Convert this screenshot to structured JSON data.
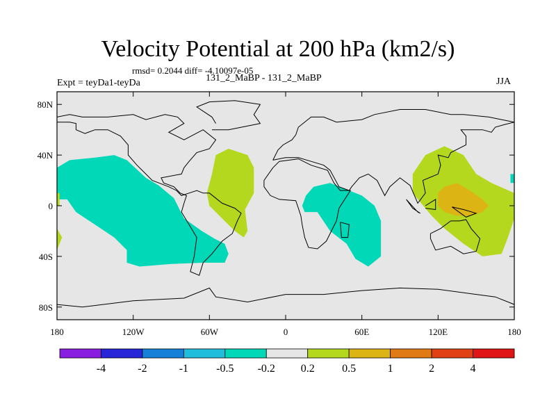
{
  "title": "Velocity Potential at 200 hPa (km2/s)",
  "stats_text": "rmsd= 0.2044 diff= -4.10097e-05",
  "expt_label": "Expt = teyDa1-teyDa",
  "center_label": "131_2_MaBP - 131_2_MaBP",
  "season": "JJA",
  "chart_data": {
    "type": "heatmap",
    "projection": "cylindrical-equidistant",
    "title": "Velocity Potential at 200 hPa (km2/s)",
    "units": "km2/s",
    "x_range": [
      -180,
      180
    ],
    "y_range": [
      -90,
      90
    ],
    "x_ticks": [
      {
        "value": -180,
        "label": "180"
      },
      {
        "value": -120,
        "label": "120W"
      },
      {
        "value": -60,
        "label": "60W"
      },
      {
        "value": 0,
        "label": "0"
      },
      {
        "value": 60,
        "label": "60E"
      },
      {
        "value": 120,
        "label": "120E"
      },
      {
        "value": 180,
        "label": "180"
      }
    ],
    "y_ticks": [
      {
        "value": 80,
        "label": "80N"
      },
      {
        "value": 40,
        "label": "40N"
      },
      {
        "value": 0,
        "label": "0"
      },
      {
        "value": -40,
        "label": "40S"
      },
      {
        "value": -80,
        "label": "80S"
      }
    ],
    "levels": [
      "-4",
      "-2",
      "-1",
      "-0.5",
      "-0.2",
      "0.2",
      "0.5",
      "1",
      "2",
      "4"
    ],
    "colors": [
      "#8a1ee0",
      "#2626d8",
      "#1680d8",
      "#20bedc",
      "#00d8b8",
      "#e6e6e6",
      "#b4d81e",
      "#dcb414",
      "#e07a14",
      "#e04014",
      "#e01414"
    ],
    "background_color": "#e6e6e6",
    "regions": [
      {
        "name": "pacific-negative",
        "level": "-0.5 to -0.2",
        "color": "#00d8b8",
        "points": [
          [
            -180,
            30
          ],
          [
            -170,
            36
          ],
          [
            -150,
            38
          ],
          [
            -135,
            40
          ],
          [
            -125,
            36
          ],
          [
            -110,
            22
          ],
          [
            -100,
            16
          ],
          [
            -88,
            6
          ],
          [
            -80,
            -10
          ],
          [
            -66,
            -20
          ],
          [
            -56,
            -26
          ],
          [
            -48,
            -30
          ],
          [
            -45,
            -38
          ],
          [
            -48,
            -45
          ],
          [
            -65,
            -45
          ],
          [
            -90,
            -46
          ],
          [
            -115,
            -48
          ],
          [
            -125,
            -45
          ],
          [
            -125,
            -35
          ],
          [
            -135,
            -25
          ],
          [
            -150,
            -15
          ],
          [
            -165,
            -5
          ],
          [
            -172,
            5
          ],
          [
            -180,
            5
          ]
        ]
      },
      {
        "name": "americas-positive",
        "level": "0.2 to 0.5",
        "color": "#b4d81e",
        "points": [
          [
            -62,
            10
          ],
          [
            -58,
            25
          ],
          [
            -55,
            40
          ],
          [
            -45,
            45
          ],
          [
            -30,
            40
          ],
          [
            -25,
            30
          ],
          [
            -25,
            10
          ],
          [
            -32,
            -3
          ],
          [
            -30,
            -20
          ],
          [
            -33,
            -25
          ],
          [
            -40,
            -20
          ],
          [
            -50,
            -10
          ],
          [
            -60,
            0
          ]
        ]
      },
      {
        "name": "africa-negative",
        "level": "-0.5 to -0.2",
        "color": "#00d8b8",
        "points": [
          [
            13,
            0
          ],
          [
            16,
            8
          ],
          [
            22,
            15
          ],
          [
            35,
            18
          ],
          [
            50,
            12
          ],
          [
            60,
            8
          ],
          [
            70,
            0
          ],
          [
            75,
            -12
          ],
          [
            75,
            -25
          ],
          [
            75,
            -40
          ],
          [
            65,
            -48
          ],
          [
            55,
            -42
          ],
          [
            48,
            -30
          ],
          [
            35,
            -20
          ],
          [
            25,
            -5
          ],
          [
            15,
            -5
          ]
        ]
      },
      {
        "name": "asia-positive",
        "level": "0.2 to 0.5",
        "color": "#b4d81e",
        "points": [
          [
            100,
            25
          ],
          [
            110,
            40
          ],
          [
            125,
            47
          ],
          [
            140,
            40
          ],
          [
            150,
            25
          ],
          [
            162,
            18
          ],
          [
            180,
            10
          ],
          [
            180,
            -10
          ],
          [
            175,
            -25
          ],
          [
            170,
            -38
          ],
          [
            155,
            -40
          ],
          [
            140,
            -30
          ],
          [
            125,
            -18
          ],
          [
            115,
            -8
          ],
          [
            100,
            10
          ]
        ]
      },
      {
        "name": "asia-core",
        "level": "0.5 to 1",
        "color": "#dcb414",
        "points": [
          [
            120,
            10
          ],
          [
            125,
            15
          ],
          [
            135,
            18
          ],
          [
            145,
            12
          ],
          [
            155,
            5
          ],
          [
            160,
            0
          ],
          [
            155,
            -5
          ],
          [
            145,
            -8
          ],
          [
            135,
            -8
          ],
          [
            125,
            -5
          ],
          [
            120,
            0
          ]
        ]
      },
      {
        "name": "west-pacific-edge",
        "level": "-0.5 to -0.2",
        "color": "#00d8b8",
        "points": [
          [
            177,
            25
          ],
          [
            180,
            25
          ],
          [
            180,
            18
          ],
          [
            177,
            18
          ]
        ]
      },
      {
        "name": "west-edge-north",
        "level": "0.2 to 0.5",
        "color": "#b4d81e",
        "points": [
          [
            -180,
            10
          ],
          [
            -178,
            10
          ],
          [
            -178,
            0
          ],
          [
            -180,
            0
          ]
        ]
      },
      {
        "name": "west-edge-south",
        "level": "0.2 to 0.5",
        "color": "#b4d81e",
        "points": [
          [
            -180,
            -18
          ],
          [
            -176,
            -25
          ],
          [
            -180,
            -35
          ]
        ]
      }
    ],
    "coastlines": [
      [
        [
          -180,
          70
        ],
        [
          -170,
          72
        ],
        [
          -160,
          70
        ],
        [
          -140,
          70
        ],
        [
          -120,
          72
        ],
        [
          -110,
          68
        ],
        [
          -95,
          72
        ],
        [
          -85,
          70
        ],
        [
          -80,
          65
        ],
        [
          -92,
          58
        ],
        [
          -80,
          52
        ],
        [
          -65,
          60
        ],
        [
          -55,
          52
        ],
        [
          -60,
          45
        ],
        [
          -70,
          42
        ],
        [
          -76,
          35
        ],
        [
          -80,
          30
        ],
        [
          -82,
          25
        ],
        [
          -98,
          22
        ],
        [
          -96,
          18
        ],
        [
          -88,
          15
        ],
        [
          -83,
          10
        ],
        [
          -78,
          8
        ],
        [
          -80,
          2
        ],
        [
          -82,
          -5
        ],
        [
          -76,
          -15
        ],
        [
          -70,
          -25
        ],
        [
          -72,
          -40
        ],
        [
          -75,
          -52
        ],
        [
          -68,
          -55
        ],
        [
          -65,
          -45
        ],
        [
          -58,
          -38
        ],
        [
          -50,
          -28
        ],
        [
          -42,
          -22
        ],
        [
          -38,
          -12
        ],
        [
          -35,
          -6
        ],
        [
          -40,
          -2
        ],
        [
          -50,
          2
        ],
        [
          -60,
          10
        ],
        [
          -65,
          10
        ],
        [
          -70,
          12
        ],
        [
          -76,
          10
        ],
        [
          -82,
          8
        ],
        [
          -86,
          12
        ],
        [
          -92,
          15
        ],
        [
          -105,
          20
        ],
        [
          -110,
          25
        ],
        [
          -117,
          32
        ],
        [
          -124,
          40
        ],
        [
          -124,
          48
        ],
        [
          -130,
          55
        ],
        [
          -140,
          60
        ],
        [
          -150,
          60
        ],
        [
          -158,
          57
        ],
        [
          -165,
          60
        ],
        [
          -165,
          65
        ],
        [
          -170,
          66
        ],
        [
          -180,
          66
        ]
      ],
      [
        [
          -58,
          60
        ],
        [
          -45,
          60
        ],
        [
          -20,
          65
        ],
        [
          -25,
          72
        ],
        [
          -20,
          80
        ],
        [
          -40,
          83
        ],
        [
          -60,
          82
        ],
        [
          -70,
          78
        ],
        [
          -58,
          70
        ],
        [
          -55,
          65
        ]
      ],
      [
        [
          -10,
          36
        ],
        [
          -6,
          44
        ],
        [
          -2,
          48
        ],
        [
          5,
          52
        ],
        [
          8,
          56
        ],
        [
          10,
          62
        ],
        [
          20,
          70
        ],
        [
          30,
          70
        ],
        [
          40,
          66
        ],
        [
          60,
          68
        ],
        [
          70,
          72
        ],
        [
          90,
          76
        ],
        [
          110,
          76
        ],
        [
          130,
          72
        ],
        [
          140,
          72
        ],
        [
          160,
          70
        ],
        [
          170,
          68
        ],
        [
          180,
          66
        ]
      ],
      [
        [
          -10,
          36
        ],
        [
          0,
          38
        ],
        [
          10,
          38
        ],
        [
          20,
          35
        ],
        [
          30,
          32
        ],
        [
          35,
          28
        ],
        [
          42,
          15
        ],
        [
          50,
          12
        ],
        [
          52,
          15
        ],
        [
          58,
          22
        ],
        [
          65,
          25
        ],
        [
          72,
          20
        ],
        [
          78,
          8
        ],
        [
          82,
          15
        ],
        [
          90,
          22
        ],
        [
          98,
          16
        ],
        [
          104,
          2
        ],
        [
          110,
          10
        ],
        [
          108,
          20
        ],
        [
          120,
          25
        ],
        [
          122,
          32
        ],
        [
          120,
          40
        ],
        [
          128,
          38
        ],
        [
          130,
          42
        ],
        [
          142,
          48
        ],
        [
          142,
          55
        ],
        [
          138,
          60
        ],
        [
          155,
          60
        ],
        [
          162,
          58
        ],
        [
          165,
          62
        ],
        [
          172,
          64
        ],
        [
          180,
          66
        ]
      ],
      [
        [
          -17,
          15
        ],
        [
          -12,
          8
        ],
        [
          -5,
          5
        ],
        [
          8,
          4
        ],
        [
          10,
          -2
        ],
        [
          12,
          -8
        ],
        [
          13,
          -15
        ],
        [
          15,
          -25
        ],
        [
          18,
          -33
        ],
        [
          25,
          -34
        ],
        [
          32,
          -28
        ],
        [
          36,
          -20
        ],
        [
          40,
          -12
        ],
        [
          42,
          -2
        ],
        [
          51,
          12
        ],
        [
          43,
          12
        ],
        [
          38,
          18
        ],
        [
          33,
          28
        ],
        [
          20,
          32
        ],
        [
          10,
          37
        ],
        [
          -5,
          35
        ],
        [
          -10,
          30
        ],
        [
          -17,
          20
        ],
        [
          -17,
          15
        ]
      ],
      [
        [
          43,
          -13
        ],
        [
          50,
          -15
        ],
        [
          49,
          -25
        ],
        [
          44,
          -25
        ],
        [
          43,
          -13
        ]
      ],
      [
        [
          114,
          -22
        ],
        [
          122,
          -18
        ],
        [
          130,
          -12
        ],
        [
          137,
          -12
        ],
        [
          142,
          -11
        ],
        [
          146,
          -18
        ],
        [
          153,
          -26
        ],
        [
          150,
          -36
        ],
        [
          140,
          -38
        ],
        [
          130,
          -32
        ],
        [
          118,
          -35
        ],
        [
          114,
          -26
        ],
        [
          114,
          -22
        ]
      ],
      [
        [
          95,
          5
        ],
        [
          104,
          -5
        ],
        [
          106,
          -6
        ],
        [
          100,
          -2
        ],
        [
          95,
          5
        ]
      ],
      [
        [
          110,
          0
        ],
        [
          118,
          5
        ],
        [
          118,
          -3
        ],
        [
          110,
          -2
        ]
      ],
      [
        [
          131,
          -1
        ],
        [
          140,
          -3
        ],
        [
          150,
          -6
        ],
        [
          142,
          -9
        ],
        [
          131,
          -1
        ]
      ],
      [
        [
          -180,
          -78
        ],
        [
          -160,
          -80
        ],
        [
          -120,
          -75
        ],
        [
          -80,
          -73
        ],
        [
          -60,
          -65
        ],
        [
          -55,
          -72
        ],
        [
          -30,
          -76
        ],
        [
          0,
          -70
        ],
        [
          30,
          -70
        ],
        [
          60,
          -67
        ],
        [
          90,
          -65
        ],
        [
          120,
          -66
        ],
        [
          150,
          -70
        ],
        [
          165,
          -72
        ],
        [
          180,
          -78
        ]
      ]
    ]
  }
}
